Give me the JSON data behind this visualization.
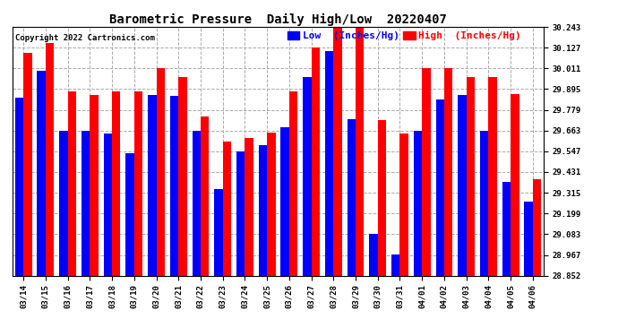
{
  "title": "Barometric Pressure  Daily High/Low  20220407",
  "copyright": "Copyright 2022 Cartronics.com",
  "legend_low": "Low  (Inches/Hg)",
  "legend_high": "High  (Inches/Hg)",
  "dates": [
    "03/14",
    "03/15",
    "03/16",
    "03/17",
    "03/18",
    "03/19",
    "03/20",
    "03/21",
    "03/22",
    "03/23",
    "03/24",
    "03/25",
    "03/26",
    "03/27",
    "03/28",
    "03/29",
    "03/30",
    "03/31",
    "04/01",
    "04/02",
    "04/03",
    "04/04",
    "04/05",
    "04/06"
  ],
  "low": [
    29.848,
    29.996,
    29.66,
    29.66,
    29.648,
    29.535,
    29.86,
    29.856,
    29.66,
    29.335,
    29.548,
    29.58,
    29.68,
    29.96,
    30.106,
    29.729,
    29.083,
    28.968,
    29.66,
    29.836,
    29.86,
    29.66,
    29.375,
    29.265
  ],
  "high": [
    30.1,
    30.155,
    29.883,
    29.863,
    29.883,
    29.883,
    30.011,
    29.96,
    29.741,
    29.6,
    29.62,
    29.653,
    29.883,
    30.127,
    30.243,
    30.243,
    29.72,
    29.648,
    30.011,
    30.011,
    29.96,
    29.96,
    29.867,
    29.39
  ],
  "ymin": 28.852,
  "ymax": 30.243,
  "yticks": [
    28.852,
    28.967,
    29.083,
    29.199,
    29.315,
    29.431,
    29.547,
    29.663,
    29.779,
    29.895,
    30.011,
    30.127,
    30.243
  ],
  "low_color": "#0000ff",
  "high_color": "#ff0000",
  "bg_color": "#ffffff",
  "title_fontsize": 10,
  "copyright_fontsize": 6.5,
  "legend_fontsize": 8,
  "tick_fontsize": 6.5,
  "bar_width": 0.38
}
